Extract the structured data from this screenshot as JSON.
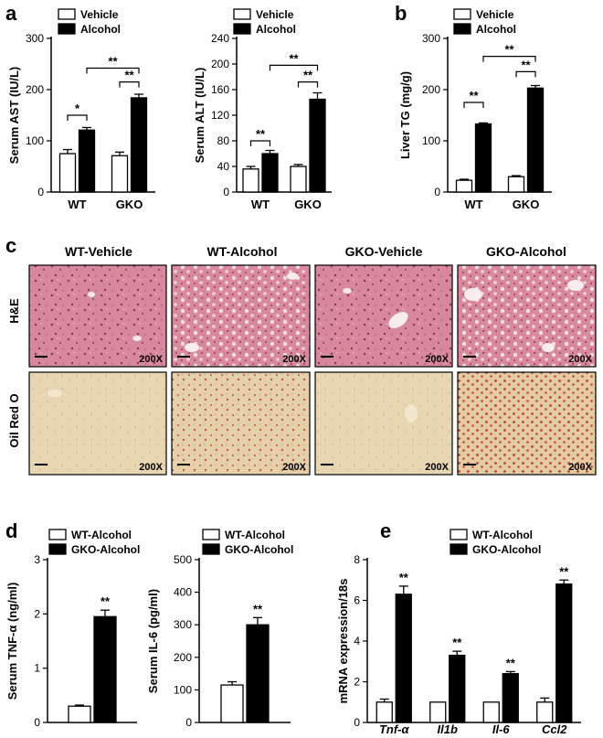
{
  "panel_labels": {
    "a": "a",
    "b": "b",
    "c": "c",
    "d": "d",
    "e": "e"
  },
  "colors": {
    "vehicle": "#ffffff",
    "alcohol": "#000000",
    "he_stain": "#d77f95",
    "oil_red_o": "#e6d3ad",
    "lipid": "#c2402a"
  },
  "chart_data": [
    {
      "id": "ast",
      "type": "bar",
      "ylabel": "Serum AST (IU/L)",
      "yticks": [
        "0",
        "100",
        "200",
        "300"
      ],
      "ylim": [
        0,
        300
      ],
      "categories": [
        "WT",
        "GKO"
      ],
      "series": [
        {
          "name": "Vehicle",
          "values": [
            75,
            71
          ],
          "errors": [
            8,
            7
          ]
        },
        {
          "name": "Alcohol",
          "values": [
            121,
            184
          ],
          "errors": [
            5,
            7
          ]
        }
      ],
      "significance": [
        {
          "label": "*",
          "from": [
            0,
            0
          ],
          "to": [
            0,
            1
          ],
          "y": 150
        },
        {
          "label": "**",
          "from": [
            1,
            0
          ],
          "to": [
            1,
            1
          ],
          "y": 215
        },
        {
          "label": "**",
          "from": [
            0,
            1
          ],
          "to": [
            1,
            1
          ],
          "y": 242
        }
      ]
    },
    {
      "id": "alt",
      "type": "bar",
      "ylabel": "Serum ALT (IU/L)",
      "yticks": [
        "0",
        "40",
        "80",
        "120",
        "160",
        "200",
        "240"
      ],
      "ylim": [
        0,
        240
      ],
      "categories": [
        "WT",
        "GKO"
      ],
      "series": [
        {
          "name": "Vehicle",
          "values": [
            36,
            40
          ],
          "errors": [
            4,
            3
          ]
        },
        {
          "name": "Alcohol",
          "values": [
            60,
            145
          ],
          "errors": [
            5,
            10
          ]
        }
      ],
      "significance": [
        {
          "label": "**",
          "from": [
            0,
            0
          ],
          "to": [
            0,
            1
          ],
          "y": 80
        },
        {
          "label": "**",
          "from": [
            1,
            0
          ],
          "to": [
            1,
            1
          ],
          "y": 172
        },
        {
          "label": "**",
          "from": [
            0,
            1
          ],
          "to": [
            1,
            1
          ],
          "y": 198
        }
      ]
    },
    {
      "id": "tg",
      "type": "bar",
      "ylabel": "Liver TG (mg/g)",
      "yticks": [
        "0",
        "100",
        "200",
        "300"
      ],
      "ylim": [
        0,
        300
      ],
      "categories": [
        "WT",
        "GKO"
      ],
      "series": [
        {
          "name": "Vehicle",
          "values": [
            23,
            30
          ],
          "errors": [
            2,
            2
          ]
        },
        {
          "name": "Alcohol",
          "values": [
            133,
            203
          ],
          "errors": [
            2,
            5
          ]
        }
      ],
      "significance": [
        {
          "label": "**",
          "from": [
            0,
            0
          ],
          "to": [
            0,
            1
          ],
          "y": 175
        },
        {
          "label": "**",
          "from": [
            1,
            0
          ],
          "to": [
            1,
            1
          ],
          "y": 235
        },
        {
          "label": "**",
          "from": [
            0,
            1
          ],
          "to": [
            1,
            1
          ],
          "y": 265
        }
      ]
    },
    {
      "id": "tnf",
      "type": "bar",
      "ylabel": "Serum TNF-α (ng/ml)",
      "yticks": [
        "0",
        "1",
        "2",
        "3"
      ],
      "ylim": [
        0,
        3
      ],
      "categories": [
        ""
      ],
      "series": [
        {
          "name": "WT-Alcohol",
          "values": [
            0.3
          ],
          "errors": [
            0.02
          ]
        },
        {
          "name": "GKO-Alcohol",
          "values": [
            1.95
          ],
          "errors": [
            0.12
          ]
        }
      ],
      "marks": [
        {
          "label": "**",
          "series": 1,
          "category": 0
        }
      ]
    },
    {
      "id": "il6",
      "type": "bar",
      "ylabel": "Serum IL-6 (pg/ml)",
      "yticks": [
        "0",
        "100",
        "200",
        "300",
        "400",
        "500"
      ],
      "ylim": [
        0,
        500
      ],
      "categories": [
        ""
      ],
      "series": [
        {
          "name": "WT-Alcohol",
          "values": [
            115
          ],
          "errors": [
            10
          ]
        },
        {
          "name": "GKO-Alcohol",
          "values": [
            300
          ],
          "errors": [
            22
          ]
        }
      ],
      "marks": [
        {
          "label": "**",
          "series": 1,
          "category": 0
        }
      ]
    },
    {
      "id": "mrna",
      "type": "bar",
      "ylabel": "mRNA expression/18s",
      "yticks": [
        "0",
        "2",
        "4",
        "6",
        "8"
      ],
      "ylim": [
        0,
        8
      ],
      "categories": [
        "Tnf-α",
        "Il1b",
        "Il-6",
        "Ccl2"
      ],
      "series": [
        {
          "name": "WT-Alcohol",
          "values": [
            1.0,
            1.0,
            1.0,
            1.0
          ],
          "errors": [
            0.15,
            0,
            0,
            0.2
          ]
        },
        {
          "name": "GKO-Alcohol",
          "values": [
            6.3,
            3.3,
            2.4,
            6.8
          ],
          "errors": [
            0.4,
            0.2,
            0.1,
            0.2
          ]
        }
      ],
      "marks": [
        {
          "label": "**",
          "series": 1,
          "category": 0
        },
        {
          "label": "**",
          "series": 1,
          "category": 1
        },
        {
          "label": "**",
          "series": 1,
          "category": 2
        },
        {
          "label": "**",
          "series": 1,
          "category": 3
        }
      ]
    }
  ],
  "histology": {
    "columns": [
      "WT-Vehicle",
      "WT-Alcohol",
      "GKO-Vehicle",
      "GKO-Alcohol"
    ],
    "rows": [
      "H&E",
      "Oil Red O"
    ],
    "magnification": "200X"
  }
}
